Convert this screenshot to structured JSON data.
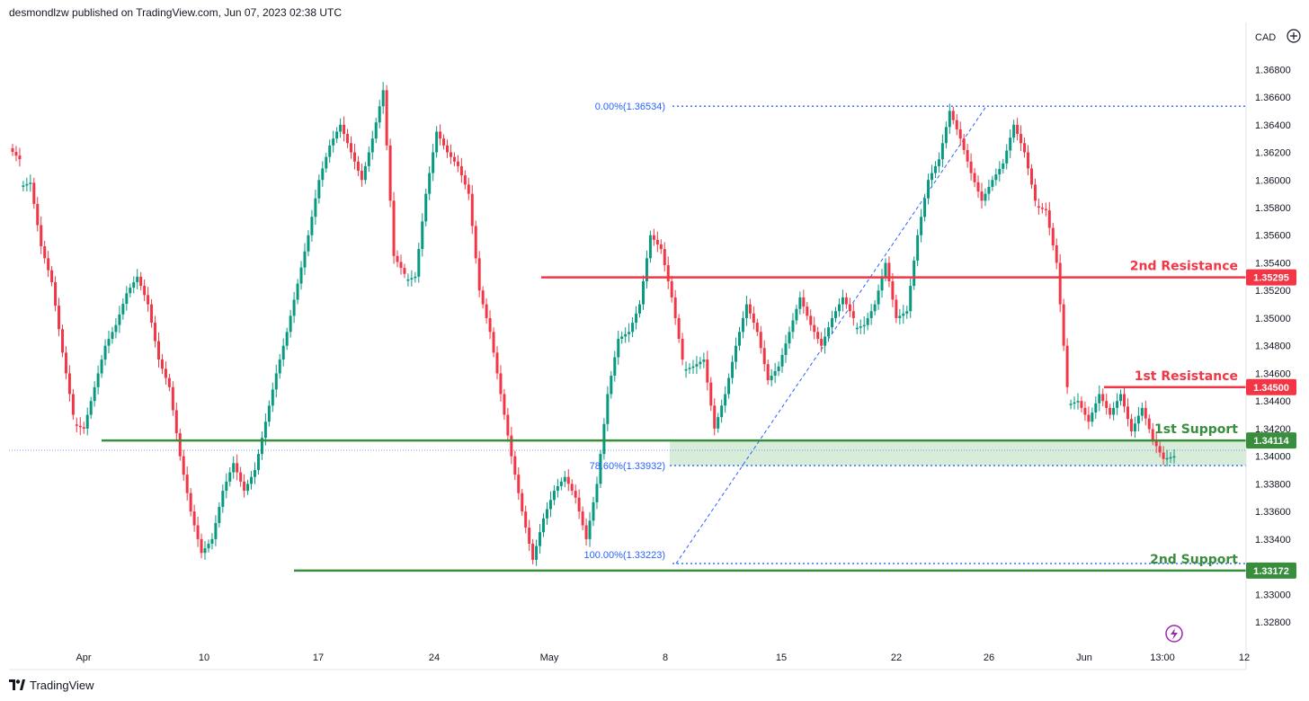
{
  "header": {
    "published": "desmondlzw published on TradingView.com, Jun 07, 2023 02:38 UTC"
  },
  "footer": {
    "brand": "TradingView"
  },
  "colors": {
    "up": "#089981",
    "down": "#f23645",
    "support": "#388e3c",
    "fib": "#2962ff",
    "zone": "#c8e6c9"
  },
  "chart_data": {
    "type": "candlestick",
    "currency": "CAD",
    "ylim": [
      1.327,
      1.3695
    ],
    "y_ticks": [
      "1.36800",
      "1.36600",
      "1.36400",
      "1.36200",
      "1.36000",
      "1.35800",
      "1.35600",
      "1.35400",
      "1.35200",
      "1.35000",
      "1.34800",
      "1.34600",
      "1.34400",
      "1.34200",
      "1.34000",
      "1.33800",
      "1.33600",
      "1.33400",
      "1.33200",
      "1.33000",
      "1.32800"
    ],
    "x_ticks": [
      "Apr",
      "10",
      "17",
      "24",
      "May",
      "8",
      "15",
      "22",
      "26",
      "Jun",
      "13:00",
      "12"
    ],
    "levels": [
      {
        "label": "2nd Resistance",
        "value": 1.35295,
        "tag": "1.35295",
        "kind": "resistance"
      },
      {
        "label": "1st Resistance",
        "value": 1.345,
        "tag": "1.34500",
        "kind": "resistance"
      },
      {
        "label": "1st Support",
        "value": 1.34114,
        "tag": "1.34114",
        "kind": "support"
      },
      {
        "label": "2nd Support",
        "value": 1.33172,
        "tag": "1.33172",
        "kind": "support"
      }
    ],
    "fib_labels": [
      {
        "text": "0.00%(1.36534)",
        "value": 1.36534
      },
      {
        "text": "78.60%(1.33932)",
        "value": 1.33932
      },
      {
        "text": "100.00%(1.33223)",
        "value": 1.33223
      }
    ],
    "waypoints": [
      [
        1.3615,
        "d"
      ],
      [
        1.3598,
        "f"
      ],
      [
        1.3552,
        "d"
      ],
      [
        1.3526,
        "d"
      ],
      [
        1.3475,
        "d"
      ],
      [
        1.343,
        "d"
      ],
      [
        1.342,
        "f"
      ],
      [
        1.345,
        "u"
      ],
      [
        1.348,
        "u"
      ],
      [
        1.3495,
        "u"
      ],
      [
        1.3518,
        "u"
      ],
      [
        1.353,
        "u"
      ],
      [
        1.351,
        "d"
      ],
      [
        1.347,
        "d"
      ],
      [
        1.345,
        "d"
      ],
      [
        1.34,
        "d"
      ],
      [
        1.336,
        "d"
      ],
      [
        1.333,
        "d"
      ],
      [
        1.334,
        "u"
      ],
      [
        1.3375,
        "u"
      ],
      [
        1.3395,
        "u"
      ],
      [
        1.3375,
        "d"
      ],
      [
        1.339,
        "u"
      ],
      [
        1.3425,
        "u"
      ],
      [
        1.346,
        "u"
      ],
      [
        1.349,
        "u"
      ],
      [
        1.3525,
        "u"
      ],
      [
        1.356,
        "u"
      ],
      [
        1.36,
        "u"
      ],
      [
        1.3625,
        "u"
      ],
      [
        1.364,
        "u"
      ],
      [
        1.362,
        "d"
      ],
      [
        1.36,
        "d"
      ],
      [
        1.363,
        "u"
      ],
      [
        1.3665,
        "u"
      ],
      [
        1.3545,
        "d"
      ],
      [
        1.3532,
        "d"
      ],
      [
        1.353,
        "f"
      ],
      [
        1.359,
        "u"
      ],
      [
        1.3635,
        "u"
      ],
      [
        1.362,
        "d"
      ],
      [
        1.361,
        "d"
      ],
      [
        1.359,
        "d"
      ],
      [
        1.352,
        "d"
      ],
      [
        1.349,
        "d"
      ],
      [
        1.3445,
        "d"
      ],
      [
        1.34,
        "d"
      ],
      [
        1.336,
        "d"
      ],
      [
        1.3325,
        "d"
      ],
      [
        1.3355,
        "u"
      ],
      [
        1.3375,
        "u"
      ],
      [
        1.3385,
        "u"
      ],
      [
        1.337,
        "d"
      ],
      [
        1.334,
        "d"
      ],
      [
        1.338,
        "u"
      ],
      [
        1.3445,
        "u"
      ],
      [
        1.3485,
        "u"
      ],
      [
        1.349,
        "u"
      ],
      [
        1.351,
        "u"
      ],
      [
        1.356,
        "u"
      ],
      [
        1.355,
        "d"
      ],
      [
        1.3515,
        "d"
      ],
      [
        1.347,
        "d"
      ],
      [
        1.3465,
        "f"
      ],
      [
        1.347,
        "u"
      ],
      [
        1.342,
        "d"
      ],
      [
        1.3445,
        "u"
      ],
      [
        1.348,
        "u"
      ],
      [
        1.351,
        "u"
      ],
      [
        1.349,
        "d"
      ],
      [
        1.3455,
        "d"
      ],
      [
        1.3465,
        "u"
      ],
      [
        1.349,
        "u"
      ],
      [
        1.3515,
        "u"
      ],
      [
        1.3495,
        "d"
      ],
      [
        1.348,
        "d"
      ],
      [
        1.35,
        "u"
      ],
      [
        1.3515,
        "u"
      ],
      [
        1.35,
        "d"
      ],
      [
        1.3495,
        "f"
      ],
      [
        1.351,
        "u"
      ],
      [
        1.354,
        "u"
      ],
      [
        1.35,
        "d"
      ],
      [
        1.3505,
        "u"
      ],
      [
        1.356,
        "u"
      ],
      [
        1.36,
        "u"
      ],
      [
        1.3615,
        "u"
      ],
      [
        1.365,
        "u"
      ],
      [
        1.363,
        "d"
      ],
      [
        1.3605,
        "d"
      ],
      [
        1.3585,
        "d"
      ],
      [
        1.36,
        "u"
      ],
      [
        1.3612,
        "u"
      ],
      [
        1.364,
        "u"
      ],
      [
        1.362,
        "d"
      ],
      [
        1.3585,
        "d"
      ],
      [
        1.3578,
        "f"
      ],
      [
        1.354,
        "d"
      ],
      [
        1.345,
        "d"
      ],
      [
        1.344,
        "f"
      ],
      [
        1.3425,
        "d"
      ],
      [
        1.3445,
        "u"
      ],
      [
        1.343,
        "d"
      ],
      [
        1.3445,
        "u"
      ],
      [
        1.3418,
        "d"
      ],
      [
        1.3435,
        "u"
      ],
      [
        1.3412,
        "d"
      ],
      [
        1.3398,
        "d"
      ],
      [
        1.34,
        "u"
      ]
    ]
  }
}
